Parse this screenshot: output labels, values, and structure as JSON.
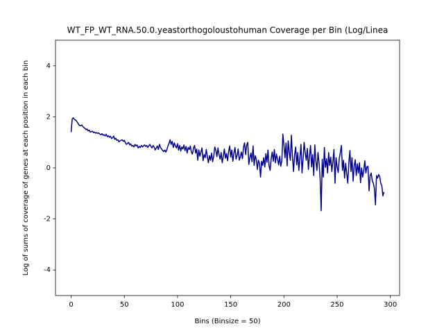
{
  "chart_data": {
    "type": "line",
    "title": "WT_FP_WT_RNA.50.0.yeastorthogoloustohuman Coverage per Bin (Log/Linea",
    "x_label": "Bins (Binsize = 50)",
    "y_label": "Log of sums of coverage of genes at each position in each bin",
    "x": [
      0,
      1,
      2,
      3,
      4,
      5,
      6,
      7,
      8,
      9,
      10,
      11,
      12,
      13,
      14,
      15,
      16,
      17,
      18,
      19,
      20,
      21,
      22,
      23,
      24,
      25,
      26,
      27,
      28,
      29,
      30,
      31,
      32,
      33,
      34,
      35,
      36,
      37,
      38,
      39,
      40,
      41,
      42,
      43,
      44,
      45,
      46,
      47,
      48,
      49,
      50,
      51,
      52,
      53,
      54,
      55,
      56,
      57,
      58,
      59,
      60,
      61,
      62,
      63,
      64,
      65,
      66,
      67,
      68,
      69,
      70,
      71,
      72,
      73,
      74,
      75,
      76,
      77,
      78,
      79,
      80,
      81,
      82,
      83,
      84,
      85,
      86,
      87,
      88,
      89,
      90,
      91,
      92,
      93,
      94,
      95,
      96,
      97,
      98,
      99,
      100,
      101,
      102,
      103,
      104,
      105,
      106,
      107,
      108,
      109,
      110,
      111,
      112,
      113,
      114,
      115,
      116,
      117,
      118,
      119,
      120,
      121,
      122,
      123,
      124,
      125,
      126,
      127,
      128,
      129,
      130,
      131,
      132,
      133,
      134,
      135,
      136,
      137,
      138,
      139,
      140,
      141,
      142,
      143,
      144,
      145,
      146,
      147,
      148,
      149,
      150,
      151,
      152,
      153,
      154,
      155,
      156,
      157,
      158,
      159,
      160,
      161,
      162,
      163,
      164,
      165,
      166,
      167,
      168,
      169,
      170,
      171,
      172,
      173,
      174,
      175,
      176,
      177,
      178,
      179,
      180,
      181,
      182,
      183,
      184,
      185,
      186,
      187,
      188,
      189,
      190,
      191,
      192,
      193,
      194,
      195,
      196,
      197,
      198,
      199,
      200,
      201,
      202,
      203,
      204,
      205,
      206,
      207,
      208,
      209,
      210,
      211,
      212,
      213,
      214,
      215,
      216,
      217,
      218,
      219,
      220,
      221,
      222,
      223,
      224,
      225,
      226,
      227,
      228,
      229,
      230,
      231,
      232,
      233,
      234,
      235,
      236,
      237,
      238,
      239,
      240,
      241,
      242,
      243,
      244,
      245,
      246,
      247,
      248,
      249,
      250,
      251,
      252,
      253,
      254,
      255,
      256,
      257,
      258,
      259,
      260,
      261,
      262,
      263,
      264,
      265,
      266,
      267,
      268,
      269,
      270,
      271,
      272,
      273,
      274,
      275,
      276,
      277,
      278,
      279,
      280,
      281,
      282,
      283,
      284,
      285,
      286,
      287,
      288,
      289,
      290,
      291,
      292,
      293,
      294
    ],
    "series": [
      {
        "color": "#00008b",
        "values": [
          1.4,
          1.92,
          1.96,
          1.9,
          1.88,
          1.84,
          1.78,
          1.7,
          1.66,
          1.65,
          1.68,
          1.62,
          1.58,
          1.55,
          1.5,
          1.52,
          1.45,
          1.48,
          1.4,
          1.42,
          1.44,
          1.38,
          1.4,
          1.36,
          1.38,
          1.35,
          1.37,
          1.32,
          1.3,
          1.34,
          1.28,
          1.3,
          1.25,
          1.32,
          1.22,
          1.26,
          1.2,
          1.24,
          1.15,
          1.18,
          1.25,
          1.12,
          1.16,
          1.08,
          1.1,
          1.02,
          1.06,
          1.08,
          1.1,
          1.04,
          1.08,
          0.98,
          0.92,
          0.96,
          1.0,
          0.9,
          0.94,
          0.85,
          0.88,
          0.82,
          0.92,
          0.86,
          0.9,
          0.78,
          0.84,
          0.8,
          0.88,
          0.82,
          0.86,
          0.9,
          0.84,
          0.88,
          0.8,
          0.86,
          0.92,
          0.84,
          0.78,
          0.88,
          0.82,
          0.7,
          0.78,
          0.86,
          0.72,
          0.92,
          0.8,
          0.74,
          0.68,
          0.64,
          0.7,
          0.62,
          0.72,
          0.86,
          0.96,
          1.1,
          0.92,
          1.04,
          0.8,
          0.98,
          0.86,
          0.78,
          0.95,
          0.7,
          0.88,
          0.66,
          0.82,
          0.74,
          0.9,
          0.68,
          0.84,
          0.58,
          0.8,
          0.72,
          0.86,
          0.62,
          0.54,
          0.78,
          0.88,
          0.58,
          0.74,
          0.3,
          0.7,
          0.46,
          0.62,
          0.78,
          0.28,
          0.52,
          0.4,
          0.72,
          0.44,
          0.2,
          0.48,
          0.3,
          0.58,
          0.24,
          0.46,
          0.82,
          0.7,
          0.44,
          0.78,
          0.52,
          0.34,
          0.6,
          0.2,
          0.46,
          0.74,
          0.38,
          0.56,
          0.28,
          0.64,
          0.86,
          0.42,
          0.7,
          0.26,
          0.58,
          0.8,
          0.34,
          0.5,
          0.74,
          0.3,
          0.44,
          0.62,
          0.36,
          0.82,
          0.98,
          0.52,
          0.9,
          1.0,
          0.14,
          0.4,
          0.58,
          0.24,
          0.86,
          0.1,
          0.48,
          0.34,
          -0.06,
          0.3,
          0.18,
          -0.36,
          0.26,
          0.1,
          0.4,
          0.04,
          0.56,
          0.22,
          0.7,
          0.08,
          -0.1,
          0.36,
          0.62,
          0.26,
          0.72,
          0.2,
          0.54,
          0.34,
          0.12,
          0.46,
          0.06,
          0.28,
          1.32,
          0.9,
          0.4,
          0.98,
          0.08,
          1.06,
          0.6,
          0.3,
          1.28,
          0.44,
          -0.14,
          0.5,
          0.82,
          0.12,
          0.6,
          -0.1,
          0.4,
          0.92,
          -0.2,
          0.36,
          1.0,
          0.58,
          0.3,
          0.76,
          -0.06,
          0.46,
          0.88,
          0.04,
          0.52,
          -0.3,
          0.9,
          0.28,
          -0.1,
          0.6,
          0.2,
          -0.4,
          -1.68,
          0.34,
          -0.36,
          0.8,
          0.02,
          0.36,
          -0.2,
          0.6,
          0.1,
          0.42,
          -0.14,
          0.24,
          0.72,
          -0.6,
          0.4,
          0.04,
          -0.18,
          0.36,
          0.6,
          0.88,
          -0.1,
          0.3,
          -0.4,
          0.18,
          -0.22,
          -0.6,
          0.2,
          0.68,
          -0.14,
          0.4,
          -0.52,
          0.06,
          0.32,
          -0.3,
          0.16,
          -0.2,
          0.2,
          -0.58,
          0.0,
          -0.36,
          -0.12,
          0.28,
          -0.2,
          0.04,
          0.06,
          -0.9,
          -0.3,
          -0.2,
          -0.5,
          -0.6,
          -0.8,
          -1.45,
          -0.3,
          -0.4,
          -0.26,
          -0.34,
          -0.6,
          -0.7,
          -1.1,
          -0.94
        ]
      }
    ],
    "xlim": [
      -14.7,
      308.7
    ],
    "ylim": [
      -5,
      5
    ],
    "xticks": [
      0,
      50,
      100,
      150,
      200,
      250,
      300
    ],
    "yticks": [
      -4,
      -2,
      0,
      2,
      4
    ]
  }
}
